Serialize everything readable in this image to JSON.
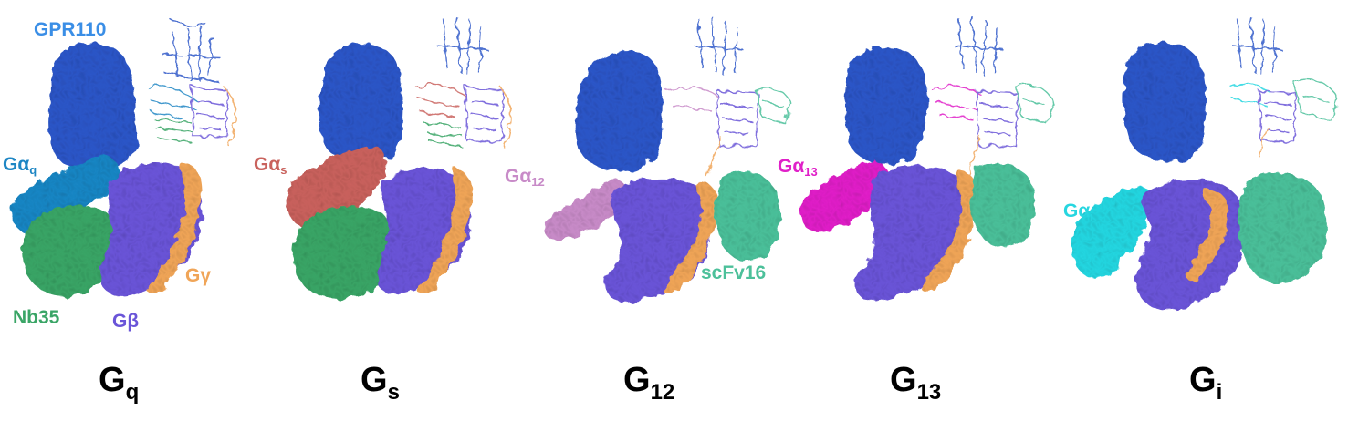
{
  "colors": {
    "receptor": "#2f57c8",
    "receptor_label": "#3a8ee6",
    "g_beta": "#6a55d8",
    "g_gamma": "#f0a558",
    "nb35": "#3aa566",
    "scfv16": "#4cc09a",
    "g_alpha_q": "#1e86c4",
    "g_alpha_s": "#c9625d",
    "g_alpha_12": "#c88bc8",
    "g_alpha_13": "#e020c8",
    "g_alpha_i": "#27d6e0"
  },
  "labels": {
    "receptor": "GPR110",
    "g_beta": "Gβ",
    "g_gamma": "Gγ",
    "nb35": "Nb35",
    "scfv16": "scFv16",
    "galpha_base": "Gα",
    "galpha_q_sub": "q",
    "galpha_s_sub": "s",
    "galpha_12_sub": "12",
    "galpha_13_sub": "13",
    "galpha_i_sub": "i"
  },
  "captions": [
    {
      "base": "G",
      "sub": "q"
    },
    {
      "base": "G",
      "sub": "s"
    },
    {
      "base": "G",
      "sub": "12"
    },
    {
      "base": "G",
      "sub": "13"
    },
    {
      "base": "G",
      "sub": "i"
    }
  ]
}
